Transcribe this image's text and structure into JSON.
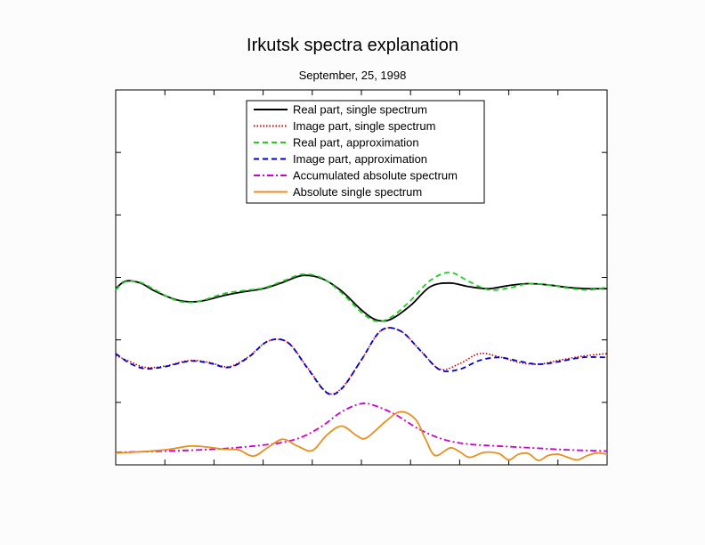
{
  "chart_data": {
    "type": "line",
    "title": "Irkutsk spectra explanation",
    "subtitle": "September, 25, 1998",
    "xlabel": "",
    "ylabel": "",
    "xlim": [
      0,
      100
    ],
    "ylim": [
      0,
      6
    ],
    "grid": false,
    "legend_position": "top-center",
    "series": [
      {
        "name": "Real part, single spectrum",
        "color": "#000000",
        "dash": "solid",
        "points": [
          [
            0,
            2.82
          ],
          [
            2,
            2.94
          ],
          [
            5,
            2.91
          ],
          [
            8,
            2.78
          ],
          [
            12,
            2.65
          ],
          [
            15,
            2.61
          ],
          [
            18,
            2.63
          ],
          [
            22,
            2.71
          ],
          [
            26,
            2.77
          ],
          [
            30,
            2.82
          ],
          [
            34,
            2.92
          ],
          [
            38,
            3.03
          ],
          [
            42,
            2.98
          ],
          [
            46,
            2.78
          ],
          [
            50,
            2.48
          ],
          [
            53,
            2.32
          ],
          [
            56,
            2.33
          ],
          [
            60,
            2.55
          ],
          [
            64,
            2.85
          ],
          [
            68,
            2.91
          ],
          [
            72,
            2.85
          ],
          [
            76,
            2.82
          ],
          [
            80,
            2.87
          ],
          [
            84,
            2.9
          ],
          [
            88,
            2.88
          ],
          [
            92,
            2.84
          ],
          [
            96,
            2.82
          ],
          [
            100,
            2.82
          ]
        ]
      },
      {
        "name": "Image part, single spectrum",
        "color": "#cc0000",
        "dash": "dotted",
        "points": [
          [
            0,
            1.75
          ],
          [
            3,
            1.65
          ],
          [
            6,
            1.56
          ],
          [
            10,
            1.58
          ],
          [
            15,
            1.67
          ],
          [
            19,
            1.64
          ],
          [
            23,
            1.57
          ],
          [
            27,
            1.73
          ],
          [
            31,
            1.98
          ],
          [
            35,
            1.96
          ],
          [
            39,
            1.56
          ],
          [
            43,
            1.16
          ],
          [
            46,
            1.23
          ],
          [
            50,
            1.68
          ],
          [
            54,
            2.15
          ],
          [
            58,
            2.14
          ],
          [
            62,
            1.83
          ],
          [
            66,
            1.53
          ],
          [
            70,
            1.62
          ],
          [
            74,
            1.78
          ],
          [
            78,
            1.73
          ],
          [
            82,
            1.64
          ],
          [
            86,
            1.61
          ],
          [
            90,
            1.67
          ],
          [
            95,
            1.74
          ],
          [
            100,
            1.78
          ]
        ]
      },
      {
        "name": "Real part, approximation",
        "color": "#22cc22",
        "dash": "dash",
        "points": [
          [
            0,
            2.8
          ],
          [
            2,
            2.93
          ],
          [
            5,
            2.92
          ],
          [
            8,
            2.8
          ],
          [
            12,
            2.64
          ],
          [
            15,
            2.6
          ],
          [
            18,
            2.64
          ],
          [
            22,
            2.74
          ],
          [
            26,
            2.79
          ],
          [
            30,
            2.83
          ],
          [
            34,
            2.94
          ],
          [
            38,
            3.05
          ],
          [
            42,
            2.99
          ],
          [
            46,
            2.75
          ],
          [
            50,
            2.44
          ],
          [
            53,
            2.3
          ],
          [
            56,
            2.36
          ],
          [
            60,
            2.63
          ],
          [
            64,
            2.95
          ],
          [
            68,
            3.08
          ],
          [
            72,
            2.93
          ],
          [
            76,
            2.8
          ],
          [
            80,
            2.83
          ],
          [
            84,
            2.9
          ],
          [
            88,
            2.88
          ],
          [
            92,
            2.83
          ],
          [
            96,
            2.8
          ],
          [
            100,
            2.84
          ]
        ]
      },
      {
        "name": "Image part, approximation",
        "color": "#0000cc",
        "dash": "dash",
        "points": [
          [
            0,
            1.78
          ],
          [
            3,
            1.62
          ],
          [
            6,
            1.54
          ],
          [
            10,
            1.57
          ],
          [
            15,
            1.66
          ],
          [
            19,
            1.63
          ],
          [
            23,
            1.56
          ],
          [
            27,
            1.72
          ],
          [
            31,
            1.98
          ],
          [
            35,
            1.96
          ],
          [
            39,
            1.55
          ],
          [
            43,
            1.15
          ],
          [
            46,
            1.22
          ],
          [
            50,
            1.68
          ],
          [
            54,
            2.15
          ],
          [
            58,
            2.14
          ],
          [
            62,
            1.83
          ],
          [
            66,
            1.52
          ],
          [
            70,
            1.53
          ],
          [
            74,
            1.67
          ],
          [
            78,
            1.72
          ],
          [
            82,
            1.66
          ],
          [
            86,
            1.61
          ],
          [
            90,
            1.65
          ],
          [
            95,
            1.72
          ],
          [
            100,
            1.72
          ]
        ]
      },
      {
        "name": "Accumulated absolute spectrum",
        "color": "#cc00cc",
        "dash": "dashdot",
        "points": [
          [
            0,
            0.2
          ],
          [
            10,
            0.22
          ],
          [
            20,
            0.25
          ],
          [
            28,
            0.3
          ],
          [
            34,
            0.36
          ],
          [
            38,
            0.45
          ],
          [
            42,
            0.62
          ],
          [
            46,
            0.85
          ],
          [
            50,
            0.98
          ],
          [
            53,
            0.94
          ],
          [
            57,
            0.8
          ],
          [
            62,
            0.56
          ],
          [
            67,
            0.4
          ],
          [
            72,
            0.33
          ],
          [
            78,
            0.3
          ],
          [
            85,
            0.27
          ],
          [
            92,
            0.24
          ],
          [
            100,
            0.22
          ]
        ]
      },
      {
        "name": "Absolute single spectrum",
        "color": "#e89020",
        "dash": "solid",
        "points": [
          [
            0,
            0.19
          ],
          [
            3,
            0.2
          ],
          [
            7,
            0.22
          ],
          [
            11,
            0.25
          ],
          [
            15,
            0.3
          ],
          [
            18,
            0.29
          ],
          [
            22,
            0.25
          ],
          [
            25,
            0.24
          ],
          [
            28,
            0.14
          ],
          [
            31,
            0.28
          ],
          [
            34,
            0.41
          ],
          [
            37,
            0.3
          ],
          [
            40,
            0.23
          ],
          [
            43,
            0.48
          ],
          [
            46,
            0.62
          ],
          [
            49,
            0.47
          ],
          [
            51,
            0.43
          ],
          [
            55,
            0.7
          ],
          [
            58,
            0.85
          ],
          [
            61,
            0.73
          ],
          [
            63,
            0.42
          ],
          [
            65,
            0.15
          ],
          [
            68,
            0.27
          ],
          [
            70,
            0.21
          ],
          [
            72,
            0.12
          ],
          [
            75,
            0.2
          ],
          [
            78,
            0.18
          ],
          [
            80,
            0.08
          ],
          [
            82,
            0.17
          ],
          [
            84,
            0.18
          ],
          [
            86,
            0.07
          ],
          [
            88,
            0.15
          ],
          [
            90,
            0.17
          ],
          [
            92,
            0.12
          ],
          [
            94,
            0.08
          ],
          [
            96,
            0.15
          ],
          [
            98,
            0.19
          ],
          [
            100,
            0.17
          ]
        ]
      }
    ]
  }
}
